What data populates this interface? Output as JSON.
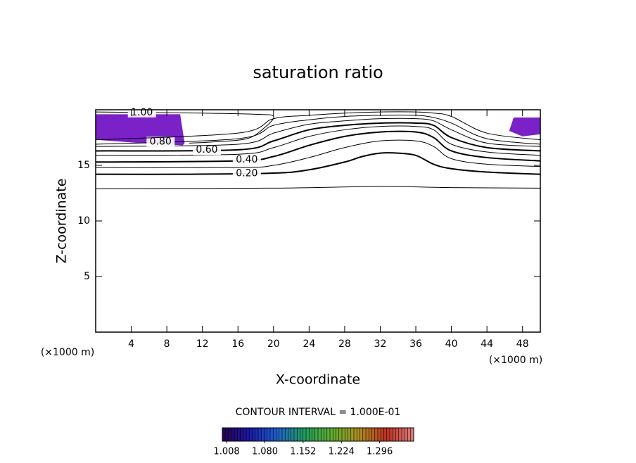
{
  "chart_data": {
    "type": "contour",
    "title": "saturation ratio",
    "xlabel": "X-coordinate",
    "ylabel": "Z-coordinate",
    "xunit": "(×1000 m)",
    "yunit": "(×1000 m)",
    "xlim": [
      0,
      50
    ],
    "ylim": [
      0,
      20
    ],
    "xticks": [
      4,
      8,
      12,
      16,
      20,
      24,
      28,
      32,
      36,
      40,
      44,
      48
    ],
    "yticks": [
      5,
      10,
      15
    ],
    "line_color": "#000000",
    "contours": [
      {
        "level": 0.1,
        "x": [
          0,
          20,
          32,
          40,
          50
        ],
        "z": [
          12.9,
          12.95,
          13.1,
          13.0,
          12.95
        ]
      },
      {
        "level": 0.2,
        "label": "0.20",
        "bold": true,
        "x": [
          0,
          10,
          20,
          24,
          28,
          30,
          32,
          34,
          36,
          38,
          40,
          44,
          50
        ],
        "z": [
          14.2,
          14.2,
          14.3,
          14.6,
          15.3,
          15.8,
          16.1,
          16.1,
          15.9,
          15.1,
          14.7,
          14.4,
          14.2
        ]
      },
      {
        "level": 0.3,
        "x": [
          0,
          16,
          20,
          24,
          28,
          32,
          36,
          38,
          40,
          44,
          50
        ],
        "z": [
          14.8,
          14.8,
          15.0,
          15.7,
          16.6,
          17.2,
          17.2,
          16.7,
          15.6,
          15.1,
          14.9
        ]
      },
      {
        "level": 0.4,
        "label": "0.40",
        "bold": true,
        "x": [
          0,
          16,
          20,
          24,
          28,
          32,
          36,
          38,
          40,
          44,
          50
        ],
        "z": [
          15.3,
          15.4,
          15.8,
          16.8,
          17.6,
          18.0,
          18.0,
          17.5,
          16.3,
          15.7,
          15.4
        ]
      },
      {
        "level": 0.5,
        "x": [
          0,
          16,
          20,
          24,
          28,
          32,
          36,
          38,
          40,
          44,
          50
        ],
        "z": [
          15.9,
          16.0,
          16.6,
          17.6,
          18.2,
          18.5,
          18.5,
          18.2,
          16.9,
          16.2,
          15.9
        ]
      },
      {
        "level": 0.6,
        "label": "0.60",
        "bold": true,
        "x": [
          0,
          16,
          20,
          24,
          28,
          32,
          36,
          38,
          40,
          44,
          50
        ],
        "z": [
          16.3,
          16.4,
          17.2,
          18.2,
          18.6,
          18.8,
          18.8,
          18.6,
          17.5,
          16.6,
          16.3
        ]
      },
      {
        "level": 0.7,
        "x": [
          0,
          16,
          20,
          24,
          28,
          32,
          36,
          38,
          40,
          44,
          50
        ],
        "z": [
          16.7,
          16.9,
          17.9,
          18.7,
          19.0,
          19.2,
          19.2,
          19.0,
          18.2,
          17.0,
          16.7
        ]
      },
      {
        "level": 0.8,
        "label": "0.80",
        "x": [
          0,
          16,
          20,
          24,
          28,
          32,
          36,
          38,
          40,
          44,
          50
        ],
        "z": [
          16.9,
          17.4,
          18.6,
          19.1,
          19.4,
          19.5,
          19.5,
          19.3,
          18.8,
          17.4,
          16.9
        ]
      },
      {
        "level": 0.9,
        "x": [
          0,
          16,
          20,
          24,
          28,
          32,
          36,
          38,
          40,
          44,
          50
        ],
        "z": [
          17.3,
          17.9,
          19.2,
          19.5,
          19.7,
          19.8,
          19.8,
          19.7,
          19.4,
          17.9,
          17.3
        ]
      },
      {
        "level": 1.0,
        "label": "1.00",
        "x": [
          0,
          12,
          18,
          20,
          19,
          17,
          13,
          10.5
        ],
        "z": [
          19.8,
          19.7,
          19.6,
          19.4,
          18.4,
          17.4,
          17.1,
          17.0
        ]
      }
    ],
    "regions": [
      {
        "color": "#7a22c8",
        "x": [
          0,
          9.5,
          10,
          9.8,
          5,
          0
        ],
        "z": [
          19.6,
          19.6,
          17.0,
          16.8,
          17.0,
          17.3
        ]
      },
      {
        "color": "#7a22c8",
        "x": [
          47,
          50,
          50,
          48,
          46.5
        ],
        "z": [
          19.3,
          19.3,
          17.8,
          17.6,
          18.1
        ]
      }
    ],
    "interval_text": "CONTOUR INTERVAL = 1.000E-01",
    "colorbar": {
      "lim": [
        1.0,
        1.36
      ],
      "ticks": [
        1.008,
        {
          "value": 1.08,
          "label": "1.080"
        },
        1.152,
        1.224,
        1.296
      ],
      "colors": [
        "#2a0050",
        "#1a1aa8",
        "#2060d0",
        "#20a060",
        "#60b030",
        "#b09020",
        "#c03020",
        "#e08080"
      ]
    }
  }
}
